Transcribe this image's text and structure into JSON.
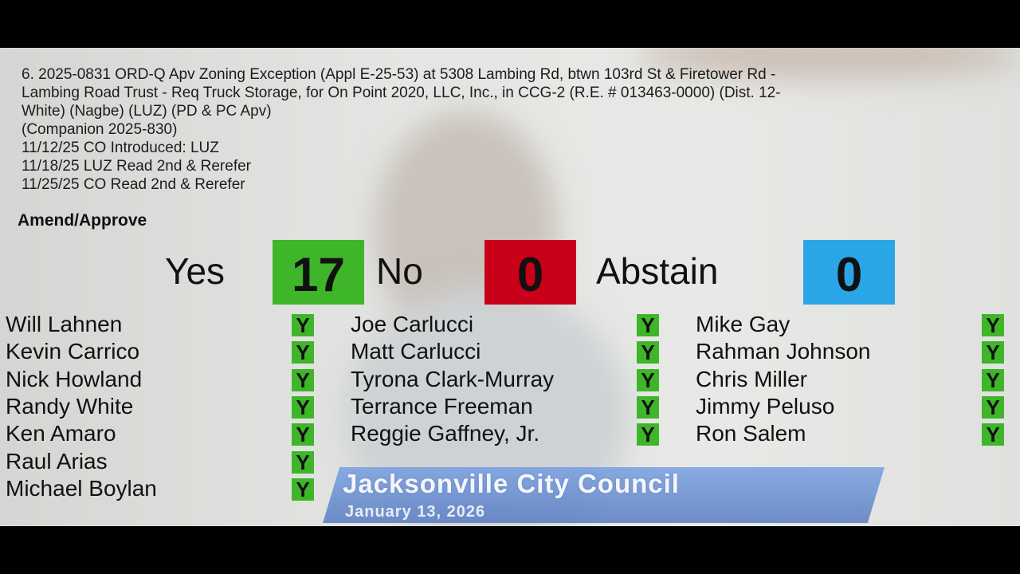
{
  "agenda": {
    "lines": [
      "6. 2025-0831 ORD-Q Apv Zoning Exception (Appl E-25-53) at 5308 Lambing Rd, btwn 103rd St & Firetower Rd -",
      "Lambing Road Trust - Req Truck Storage, for On Point 2020, LLC, Inc., in CCG-2 (R.E. # 013463-0000) (Dist. 12-",
      "White) (Nagbe) (LUZ) (PD & PC Apv)",
      "(Companion 2025-830)",
      "11/12/25 CO Introduced: LUZ",
      "11/18/25 LUZ Read 2nd & Rerefer",
      "11/25/25 CO Read 2nd & Rerefer"
    ]
  },
  "motion": "Amend/Approve",
  "tally": {
    "yes_label": "Yes",
    "yes": "17",
    "no_label": "No",
    "no": "0",
    "abstain_label": "Abstain",
    "abstain": "0",
    "colors": {
      "yes": "#3fb52a",
      "no": "#c8001a",
      "abstain": "#2aa6e6"
    }
  },
  "votes": [
    [
      {
        "name": "Will Lahnen",
        "vote": "Y"
      },
      {
        "name": "Kevin Carrico",
        "vote": "Y"
      },
      {
        "name": "Nick Howland",
        "vote": "Y"
      },
      {
        "name": "Randy White",
        "vote": "Y"
      },
      {
        "name": "Ken Amaro",
        "vote": "Y"
      },
      {
        "name": "Raul Arias",
        "vote": "Y"
      },
      {
        "name": "Michael Boylan",
        "vote": "Y"
      }
    ],
    [
      {
        "name": "Joe Carlucci",
        "vote": "Y"
      },
      {
        "name": "Matt Carlucci",
        "vote": "Y"
      },
      {
        "name": "Tyrona Clark-Murray",
        "vote": "Y"
      },
      {
        "name": "Terrance Freeman",
        "vote": "Y"
      },
      {
        "name": "Reggie Gaffney, Jr.",
        "vote": "Y"
      }
    ],
    [
      {
        "name": "Mike Gay",
        "vote": "Y"
      },
      {
        "name": "Rahman Johnson",
        "vote": "Y"
      },
      {
        "name": "Chris Miller",
        "vote": "Y"
      },
      {
        "name": "Jimmy Peluso",
        "vote": "Y"
      },
      {
        "name": "Ron Salem",
        "vote": "Y"
      }
    ]
  ],
  "banner": {
    "title": "Jacksonville City Council",
    "date": "January 13, 2026"
  }
}
